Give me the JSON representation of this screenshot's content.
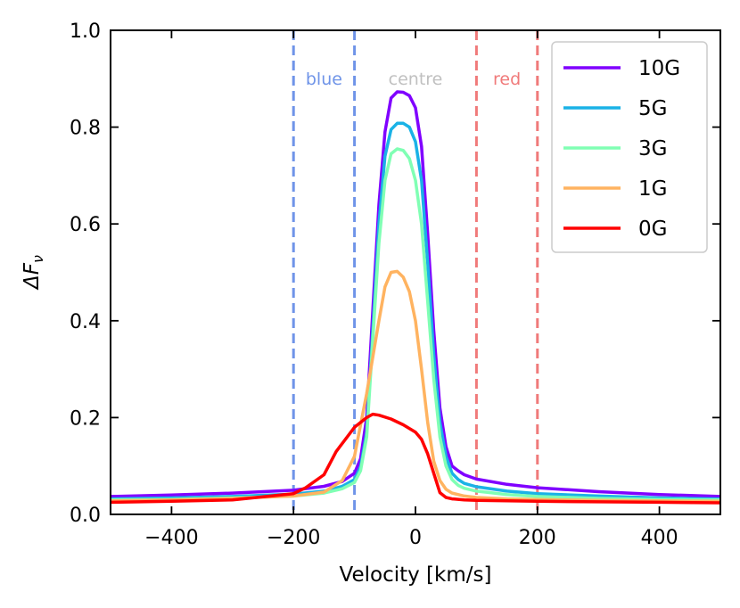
{
  "chart_data": {
    "type": "line",
    "xlabel": "Velocity [km/s]",
    "ylabel_main": "ΔF",
    "ylabel_sub": "ν",
    "xlim": [
      -500,
      500
    ],
    "ylim": [
      0.0,
      1.0
    ],
    "xticks": [
      -400,
      -200,
      0,
      200,
      400
    ],
    "xtick_labels": [
      "−400",
      "−200",
      "0",
      "200",
      "400"
    ],
    "yticks": [
      0.0,
      0.2,
      0.4,
      0.6,
      0.8,
      1.0
    ],
    "ytick_labels": [
      "0.0",
      "0.2",
      "0.4",
      "0.6",
      "0.8",
      "1.0"
    ],
    "grid": false,
    "legend_position": "top-right",
    "vlines": [
      {
        "x": -200,
        "color": "#6f94e8"
      },
      {
        "x": -100,
        "color": "#6f94e8"
      },
      {
        "x": 100,
        "color": "#f07a7a"
      },
      {
        "x": 200,
        "color": "#f07a7a"
      }
    ],
    "region_labels": [
      {
        "text": "blue",
        "x": -150,
        "color": "#6f94e8"
      },
      {
        "text": "centre",
        "x": 0,
        "color": "#c0c0c0"
      },
      {
        "text": "red",
        "x": 150,
        "color": "#f07a7a"
      }
    ],
    "series": [
      {
        "name": "10G",
        "color": "#8000ff",
        "x": [
          -500,
          -400,
          -300,
          -200,
          -150,
          -120,
          -100,
          -90,
          -80,
          -70,
          -60,
          -50,
          -40,
          -30,
          -20,
          -10,
          0,
          10,
          20,
          30,
          40,
          50,
          60,
          70,
          80,
          100,
          150,
          200,
          300,
          400,
          500
        ],
        "y": [
          0.037,
          0.04,
          0.044,
          0.05,
          0.058,
          0.068,
          0.085,
          0.115,
          0.2,
          0.42,
          0.64,
          0.79,
          0.86,
          0.873,
          0.872,
          0.865,
          0.84,
          0.76,
          0.58,
          0.38,
          0.22,
          0.14,
          0.1,
          0.09,
          0.082,
          0.073,
          0.062,
          0.055,
          0.047,
          0.041,
          0.037
        ]
      },
      {
        "name": "5G",
        "color": "#1ab2e6",
        "x": [
          -500,
          -400,
          -300,
          -200,
          -150,
          -120,
          -100,
          -90,
          -80,
          -70,
          -60,
          -50,
          -40,
          -30,
          -20,
          -10,
          0,
          10,
          20,
          30,
          40,
          50,
          60,
          70,
          80,
          100,
          150,
          200,
          300,
          400,
          500
        ],
        "y": [
          0.032,
          0.034,
          0.037,
          0.042,
          0.048,
          0.058,
          0.072,
          0.098,
          0.17,
          0.38,
          0.6,
          0.74,
          0.795,
          0.808,
          0.808,
          0.8,
          0.77,
          0.69,
          0.52,
          0.33,
          0.19,
          0.12,
          0.085,
          0.072,
          0.064,
          0.057,
          0.048,
          0.043,
          0.038,
          0.034,
          0.032
        ]
      },
      {
        "name": "3G",
        "color": "#80ffb4",
        "x": [
          -500,
          -400,
          -300,
          -200,
          -150,
          -120,
          -100,
          -90,
          -80,
          -70,
          -60,
          -50,
          -40,
          -30,
          -20,
          -10,
          0,
          10,
          20,
          30,
          40,
          50,
          60,
          70,
          80,
          100,
          150,
          200,
          300,
          400,
          500
        ],
        "y": [
          0.03,
          0.031,
          0.034,
          0.038,
          0.044,
          0.053,
          0.066,
          0.09,
          0.16,
          0.36,
          0.56,
          0.69,
          0.745,
          0.755,
          0.752,
          0.735,
          0.69,
          0.6,
          0.44,
          0.28,
          0.16,
          0.1,
          0.072,
          0.06,
          0.054,
          0.048,
          0.041,
          0.037,
          0.033,
          0.031,
          0.03
        ]
      },
      {
        "name": "1G",
        "color": "#ffb360",
        "x": [
          -500,
          -400,
          -300,
          -200,
          -150,
          -120,
          -100,
          -80,
          -60,
          -50,
          -40,
          -30,
          -20,
          -10,
          0,
          10,
          20,
          30,
          40,
          50,
          60,
          80,
          100,
          150,
          200,
          300,
          400,
          500
        ],
        "y": [
          0.028,
          0.03,
          0.033,
          0.038,
          0.046,
          0.07,
          0.12,
          0.25,
          0.4,
          0.47,
          0.5,
          0.502,
          0.49,
          0.46,
          0.4,
          0.3,
          0.19,
          0.11,
          0.07,
          0.052,
          0.044,
          0.038,
          0.035,
          0.032,
          0.031,
          0.029,
          0.028,
          0.027
        ]
      },
      {
        "name": "0G",
        "color": "#ff0000",
        "x": [
          -500,
          -400,
          -300,
          -200,
          -180,
          -150,
          -130,
          -100,
          -80,
          -70,
          -60,
          -40,
          -20,
          0,
          10,
          20,
          30,
          40,
          50,
          60,
          80,
          100,
          150,
          200,
          300,
          400,
          500
        ],
        "y": [
          0.025,
          0.027,
          0.03,
          0.043,
          0.055,
          0.082,
          0.13,
          0.18,
          0.2,
          0.207,
          0.205,
          0.197,
          0.185,
          0.17,
          0.155,
          0.125,
          0.085,
          0.045,
          0.035,
          0.032,
          0.03,
          0.029,
          0.028,
          0.027,
          0.026,
          0.025,
          0.024
        ]
      }
    ]
  }
}
